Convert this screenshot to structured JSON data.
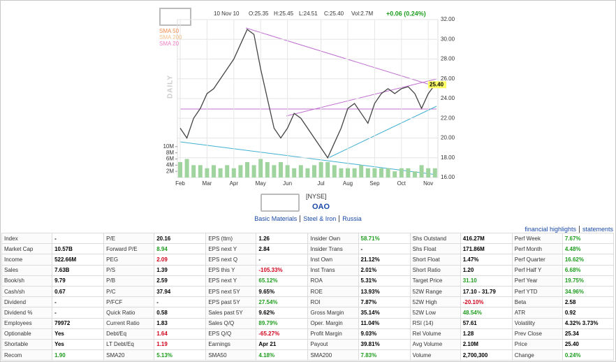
{
  "chart_data": {
    "type": "line",
    "period_label": "DAILY",
    "header": {
      "date": "10 Nov 10",
      "open": "O:25.35",
      "high": "H:25.45",
      "low": "L:24.51",
      "close": "C:25.40",
      "volume": "Vol:2.7M",
      "change": "+0.06 (0.24%)"
    },
    "indicators": [
      {
        "name": "SMA 50",
        "color": "#f08c4c"
      },
      {
        "name": "SMA 200",
        "color": "#f5c08c"
      },
      {
        "name": "SMA 20",
        "color": "#f07cc4"
      }
    ],
    "categories": [
      "Feb",
      null,
      null,
      null,
      "Mar",
      null,
      null,
      null,
      "Apr",
      null,
      null,
      null,
      "May",
      null,
      null,
      null,
      "Jun",
      null,
      null,
      null,
      null,
      "Jul",
      null,
      null,
      null,
      "Aug",
      null,
      null,
      null,
      "Sep",
      null,
      null,
      null,
      "Oct",
      null,
      null,
      null,
      "Nov",
      null
    ],
    "series": [
      {
        "color": "#444444",
        "values": [
          21,
          20,
          22,
          23,
          24.5,
          25,
          26,
          27,
          28,
          29.5,
          31,
          30.5,
          27,
          24,
          21,
          20,
          21,
          22.5,
          22,
          21,
          20,
          19,
          18,
          19.5,
          21,
          23,
          23.5,
          22.5,
          21.5,
          23.5,
          24.5,
          25,
          24.5,
          25,
          25.2,
          24.5,
          23,
          24.5,
          25.4
        ]
      },
      {
        "color": "#9fd49f",
        "axis": "y2",
        "values": [
          5000000,
          6000000,
          4000000,
          4000000,
          3000000,
          4000000,
          3000000,
          4000000,
          3000000,
          4000000,
          5000000,
          4000000,
          6000000,
          5000000,
          4000000,
          5000000,
          4000000,
          3000000,
          4000000,
          3000000,
          4000000,
          5000000,
          5000000,
          4000000,
          3000000,
          3000000,
          3000000,
          4000000,
          3000000,
          3000000,
          3000000,
          3000000,
          2000000,
          3000000,
          3000000,
          2000000,
          4000000,
          3000000,
          3000000
        ]
      }
    ],
    "ylim": [
      16,
      32
    ],
    "yticks": [
      {
        "value": 16,
        "label": "16.00"
      },
      {
        "value": 18,
        "label": "18.00"
      },
      {
        "value": 20,
        "label": "20.00"
      },
      {
        "value": 22,
        "label": "22.00"
      },
      {
        "value": 24,
        "label": "24.00"
      },
      {
        "value": 26,
        "label": "26.00"
      },
      {
        "value": 28,
        "label": "28.00"
      },
      {
        "value": 30,
        "label": "30.00"
      },
      {
        "value": 32,
        "label": "32.00"
      }
    ],
    "y2lim": [
      0,
      12000000
    ],
    "y2ticks": [
      {
        "value": 2000000,
        "label": "2M"
      },
      {
        "value": 4000000,
        "label": "4M"
      },
      {
        "value": 6000000,
        "label": "6M"
      },
      {
        "value": 8000000,
        "label": "8M"
      },
      {
        "value": 10000000,
        "label": "10M"
      }
    ],
    "price_tag": {
      "value": 25.4,
      "label": "25.40"
    },
    "grid": true
  },
  "quote": {
    "exchange": "[NYSE]",
    "ticker": "OAO",
    "sector_links": [
      "Basic Materials",
      "Steel & Iron",
      "Russia"
    ],
    "links": [
      "financial highlights",
      "statements"
    ]
  },
  "table": {
    "rows": [
      [
        "Index",
        "-",
        "P/E",
        "20.16",
        "EPS (ttm)",
        "1.26",
        "Insider Own",
        "58.71%",
        "Shs Outstand",
        "416.27M",
        "Perf Week",
        "7.67%"
      ],
      [
        "Market Cap",
        "10.57B",
        "Forward P/E",
        "8.94",
        "EPS next Y",
        "2.84",
        "Insider Trans",
        "-",
        "Shs Float",
        "171.86M",
        "Perf Month",
        "4.48%"
      ],
      [
        "Income",
        "522.66M",
        "PEG",
        "2.09",
        "EPS next Q",
        "-",
        "Inst Own",
        "21.12%",
        "Short Float",
        "1.47%",
        "Perf Quarter",
        "16.62%"
      ],
      [
        "Sales",
        "7.63B",
        "P/S",
        "1.39",
        "EPS this Y",
        "-105.33%",
        "Inst Trans",
        "2.01%",
        "Short Ratio",
        "1.20",
        "Perf Half Y",
        "6.68%"
      ],
      [
        "Book/sh",
        "9.79",
        "P/B",
        "2.59",
        "EPS next Y",
        "65.12%",
        "ROA",
        "5.31%",
        "Target Price",
        "31.10",
        "Perf Year",
        "19.75%"
      ],
      [
        "Cash/sh",
        "0.67",
        "P/C",
        "37.94",
        "EPS next 5Y",
        "9.65%",
        "ROE",
        "13.93%",
        "52W Range",
        "17.10 - 31.79",
        "Perf YTD",
        "34.96%"
      ],
      [
        "Dividend",
        "-",
        "P/FCF",
        "-",
        "EPS past 5Y",
        "27.54%",
        "ROI",
        "7.87%",
        "52W High",
        "-20.10%",
        "Beta",
        "2.58"
      ],
      [
        "Dividend %",
        "-",
        "Quick Ratio",
        "0.58",
        "Sales past 5Y",
        "9.62%",
        "Gross Margin",
        "35.14%",
        "52W Low",
        "48.54%",
        "ATR",
        "0.92"
      ],
      [
        "Employees",
        "79972",
        "Current Ratio",
        "1.83",
        "Sales Q/Q",
        "89.79%",
        "Oper. Margin",
        "11.04%",
        "RSI (14)",
        "57.61",
        "Volatility",
        "4.32% 3.73%"
      ],
      [
        "Optionable",
        "Yes",
        "Debt/Eq",
        "1.64",
        "EPS Q/Q",
        "-65.27%",
        "Profit Margin",
        "9.03%",
        "Rel Volume",
        "1.28",
        "Prev Close",
        "25.34"
      ],
      [
        "Shortable",
        "Yes",
        "LT Debt/Eq",
        "1.19",
        "Earnings",
        "Apr 21",
        "Payout",
        "39.81%",
        "Avg Volume",
        "2.10M",
        "Price",
        "25.40"
      ],
      [
        "Recom",
        "1.90",
        "SMA20",
        "5.13%",
        "SMA50",
        "4.18%",
        "SMA200",
        "7.83%",
        "Volume",
        "2,700,300",
        "Change",
        "0.24%"
      ]
    ]
  }
}
